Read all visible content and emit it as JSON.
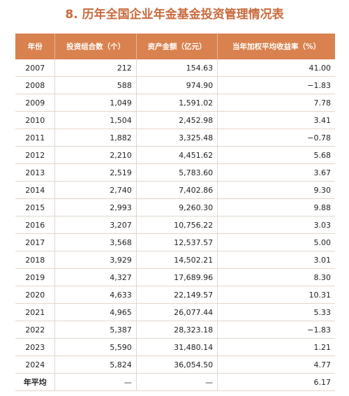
{
  "header": {
    "title": "8. 历年全国企业年金基金投资管理情况表"
  },
  "table": {
    "columns": [
      "年份",
      "投资组合数（个）",
      "资产金额（亿元）",
      "当年加权平均收益率（%）"
    ],
    "rows": [
      [
        "2007",
        "212",
        "154.63",
        "41.00"
      ],
      [
        "2008",
        "588",
        "974.90",
        "−1.83"
      ],
      [
        "2009",
        "1,049",
        "1,591.02",
        "7.78"
      ],
      [
        "2010",
        "1,504",
        "2,452.98",
        "3.41"
      ],
      [
        "2011",
        "1,882",
        "3,325.48",
        "−0.78"
      ],
      [
        "2012",
        "2,210",
        "4,451.62",
        "5.68"
      ],
      [
        "2013",
        "2,519",
        "5,783.60",
        "3.67"
      ],
      [
        "2014",
        "2,740",
        "7,402.86",
        "9.30"
      ],
      [
        "2015",
        "2,993",
        "9,260.30",
        "9.88"
      ],
      [
        "2016",
        "3,207",
        "10,756.22",
        "3.03"
      ],
      [
        "2017",
        "3,568",
        "12,537.57",
        "5.00"
      ],
      [
        "2018",
        "3,929",
        "14,502.21",
        "3.01"
      ],
      [
        "2019",
        "4,327",
        "17,689.96",
        "8.30"
      ],
      [
        "2020",
        "4,633",
        "22,149.57",
        "10.31"
      ],
      [
        "2021",
        "4,965",
        "26,077.44",
        "5.33"
      ],
      [
        "2022",
        "5,387",
        "28,323.18",
        "−1.83"
      ],
      [
        "2023",
        "5,590",
        "31,480.14",
        "1.21"
      ],
      [
        "2024",
        "5,824",
        "36,054.50",
        "4.77"
      ],
      [
        "年平均",
        "—",
        "—",
        "6.17"
      ]
    ]
  }
}
